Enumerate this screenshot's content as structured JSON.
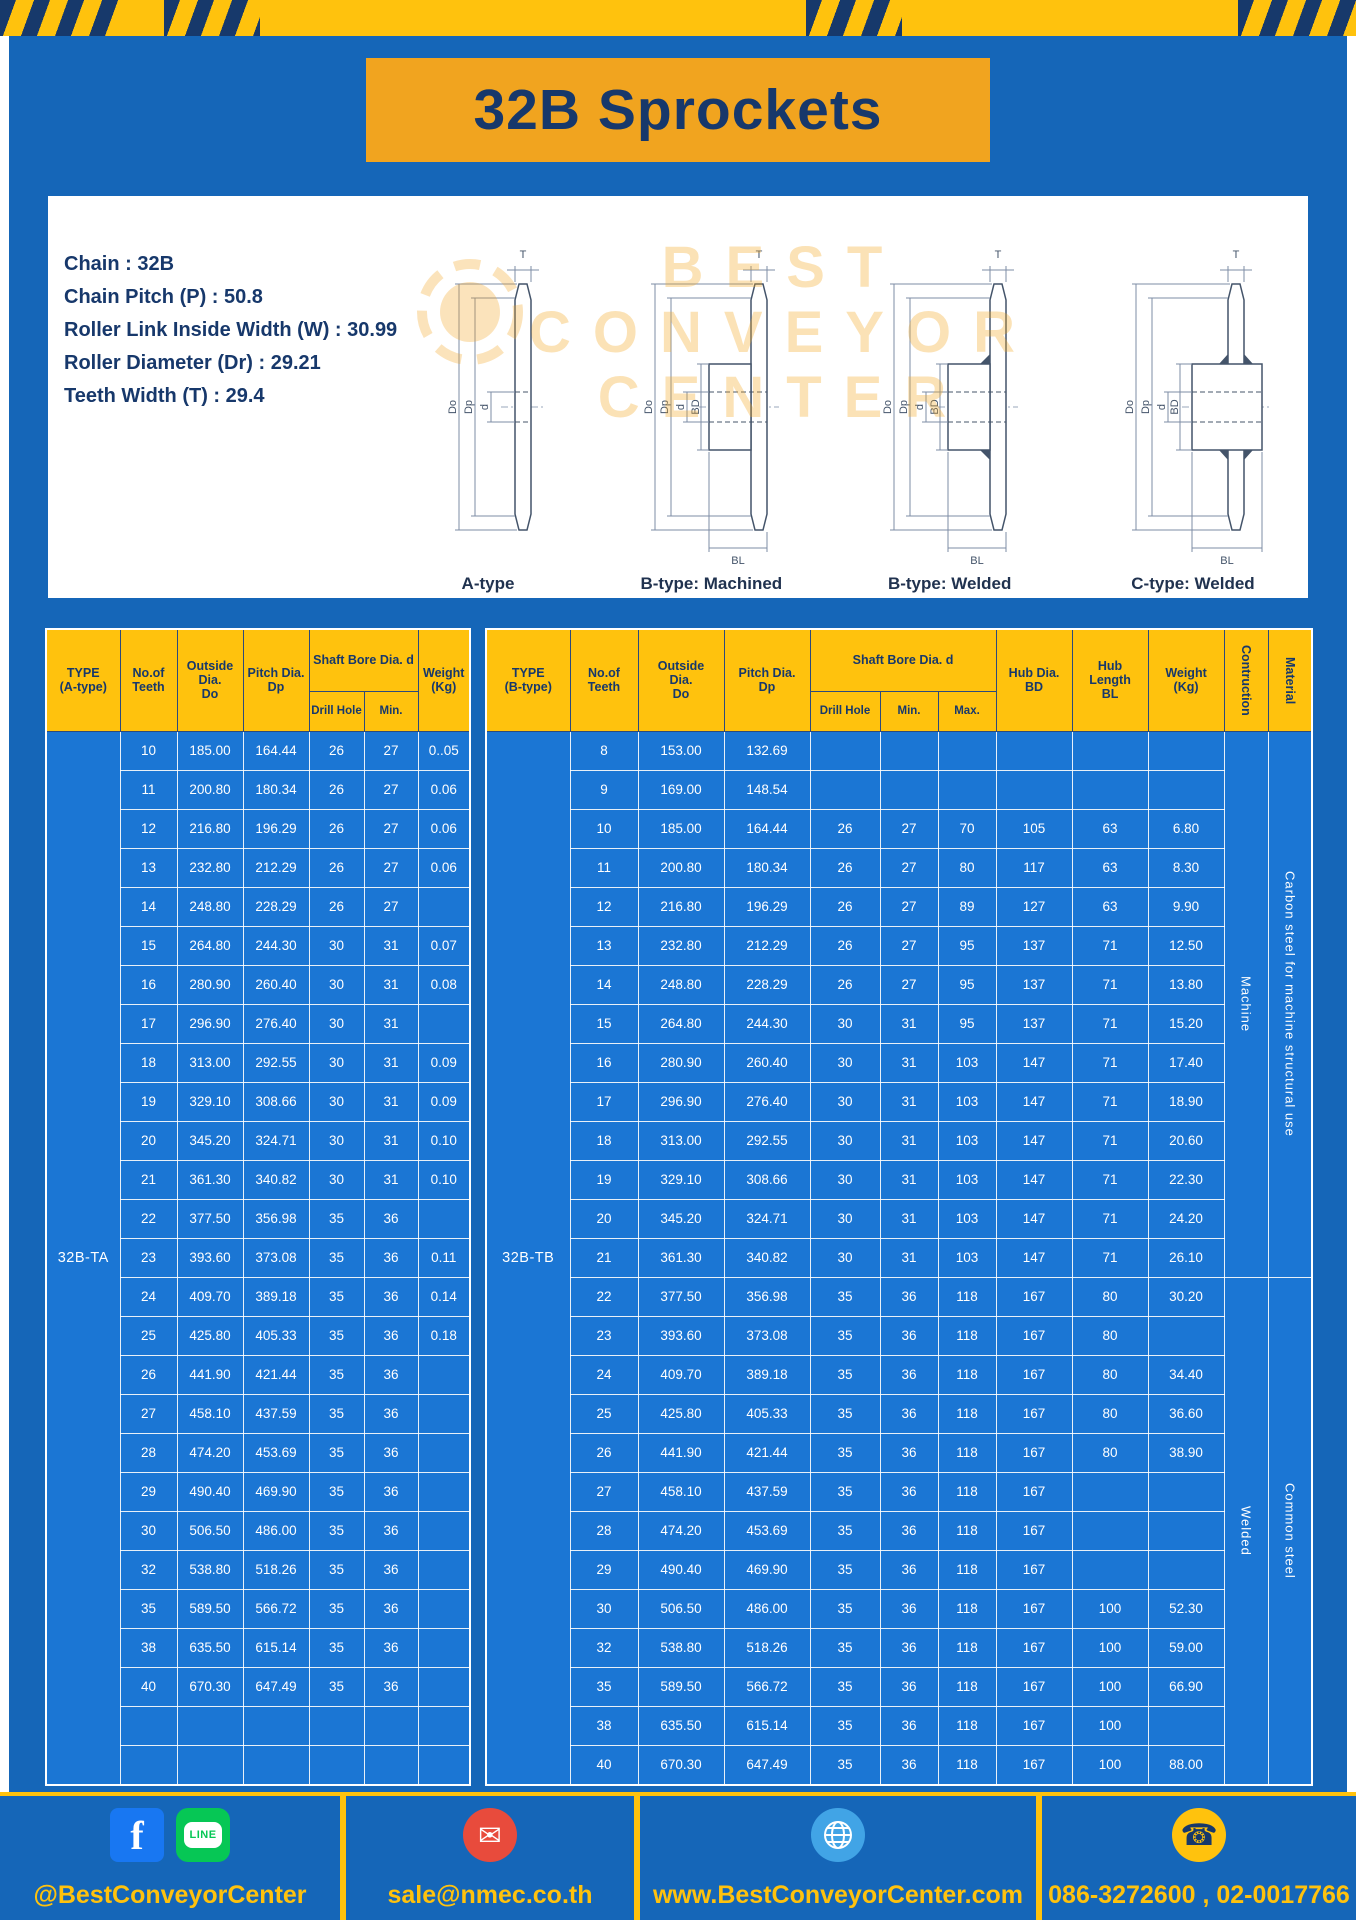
{
  "page_title": "32B Sprockets",
  "specs": {
    "lines": [
      "Chain : 32B",
      "Chain Pitch (P) : 50.8",
      "Roller Link Inside Width (W) : 30.99",
      "Roller Diameter (Dr) : 29.21",
      "Teeth Width (T) : 29.4"
    ]
  },
  "watermark": {
    "text": "BEST\nCONVEYOR\nCENTER"
  },
  "dims": {
    "T": "T",
    "Do": "Do",
    "Dp": "Dp",
    "d": "d",
    "BD": "BD",
    "BL": "BL"
  },
  "diagrams": {
    "captions": [
      "A-type",
      "B-type: Machined",
      "B-type: Welded",
      "C-type: Welded"
    ]
  },
  "left_table": {
    "type_code": "32B-TA",
    "headers": {
      "type": "TYPE\n(A-type)",
      "teeth": "No.of\nTeeth",
      "outside": "Outside\nDia.\nDo",
      "pitch": "Pitch Dia.\nDp",
      "shaft": "Shaft Bore Dia. d",
      "drill": "Drill Hole",
      "min": "Min.",
      "weight": "Weight\n(Kg)"
    },
    "rows": [
      [
        "10",
        "185.00",
        "164.44",
        "26",
        "27",
        "0..05"
      ],
      [
        "11",
        "200.80",
        "180.34",
        "26",
        "27",
        "0.06"
      ],
      [
        "12",
        "216.80",
        "196.29",
        "26",
        "27",
        "0.06"
      ],
      [
        "13",
        "232.80",
        "212.29",
        "26",
        "27",
        "0.06"
      ],
      [
        "14",
        "248.80",
        "228.29",
        "26",
        "27",
        ""
      ],
      [
        "15",
        "264.80",
        "244.30",
        "30",
        "31",
        "0.07"
      ],
      [
        "16",
        "280.90",
        "260.40",
        "30",
        "31",
        "0.08"
      ],
      [
        "17",
        "296.90",
        "276.40",
        "30",
        "31",
        ""
      ],
      [
        "18",
        "313.00",
        "292.55",
        "30",
        "31",
        "0.09"
      ],
      [
        "19",
        "329.10",
        "308.66",
        "30",
        "31",
        "0.09"
      ],
      [
        "20",
        "345.20",
        "324.71",
        "30",
        "31",
        "0.10"
      ],
      [
        "21",
        "361.30",
        "340.82",
        "30",
        "31",
        "0.10"
      ],
      [
        "22",
        "377.50",
        "356.98",
        "35",
        "36",
        ""
      ],
      [
        "23",
        "393.60",
        "373.08",
        "35",
        "36",
        "0.11"
      ],
      [
        "24",
        "409.70",
        "389.18",
        "35",
        "36",
        "0.14"
      ],
      [
        "25",
        "425.80",
        "405.33",
        "35",
        "36",
        "0.18"
      ],
      [
        "26",
        "441.90",
        "421.44",
        "35",
        "36",
        ""
      ],
      [
        "27",
        "458.10",
        "437.59",
        "35",
        "36",
        ""
      ],
      [
        "28",
        "474.20",
        "453.69",
        "35",
        "36",
        ""
      ],
      [
        "29",
        "490.40",
        "469.90",
        "35",
        "36",
        ""
      ],
      [
        "30",
        "506.50",
        "486.00",
        "35",
        "36",
        ""
      ],
      [
        "32",
        "538.80",
        "518.26",
        "35",
        "36",
        ""
      ],
      [
        "35",
        "589.50",
        "566.72",
        "35",
        "36",
        ""
      ],
      [
        "38",
        "635.50",
        "615.14",
        "35",
        "36",
        ""
      ],
      [
        "40",
        "670.30",
        "647.49",
        "35",
        "36",
        ""
      ],
      [
        "",
        "",
        "",
        "",
        "",
        ""
      ],
      [
        "",
        "",
        "",
        "",
        "",
        ""
      ]
    ]
  },
  "right_table": {
    "type_code": "32B-TB",
    "headers": {
      "type": "TYPE\n(B-type)",
      "teeth": "No.of\nTeeth",
      "outside": "Outside\nDia.\nDo",
      "pitch": "Pitch Dia.\nDp",
      "shaft": "Shaft Bore Dia. d",
      "drill": "Drill Hole",
      "min": "Min.",
      "max": "Max.",
      "hub_dia": "Hub Dia.\nBD",
      "hub_len": "Hub\nLength\nBL",
      "weight": "Weight\n(Kg)",
      "construction": "Contruction",
      "material": "Material"
    },
    "rows": [
      [
        "8",
        "153.00",
        "132.69",
        "",
        "",
        "",
        "",
        "",
        ""
      ],
      [
        "9",
        "169.00",
        "148.54",
        "",
        "",
        "",
        "",
        "",
        ""
      ],
      [
        "10",
        "185.00",
        "164.44",
        "26",
        "27",
        "70",
        "105",
        "63",
        "6.80"
      ],
      [
        "11",
        "200.80",
        "180.34",
        "26",
        "27",
        "80",
        "117",
        "63",
        "8.30"
      ],
      [
        "12",
        "216.80",
        "196.29",
        "26",
        "27",
        "89",
        "127",
        "63",
        "9.90"
      ],
      [
        "13",
        "232.80",
        "212.29",
        "26",
        "27",
        "95",
        "137",
        "71",
        "12.50"
      ],
      [
        "14",
        "248.80",
        "228.29",
        "26",
        "27",
        "95",
        "137",
        "71",
        "13.80"
      ],
      [
        "15",
        "264.80",
        "244.30",
        "30",
        "31",
        "95",
        "137",
        "71",
        "15.20"
      ],
      [
        "16",
        "280.90",
        "260.40",
        "30",
        "31",
        "103",
        "147",
        "71",
        "17.40"
      ],
      [
        "17",
        "296.90",
        "276.40",
        "30",
        "31",
        "103",
        "147",
        "71",
        "18.90"
      ],
      [
        "18",
        "313.00",
        "292.55",
        "30",
        "31",
        "103",
        "147",
        "71",
        "20.60"
      ],
      [
        "19",
        "329.10",
        "308.66",
        "30",
        "31",
        "103",
        "147",
        "71",
        "22.30"
      ],
      [
        "20",
        "345.20",
        "324.71",
        "30",
        "31",
        "103",
        "147",
        "71",
        "24.20"
      ],
      [
        "21",
        "361.30",
        "340.82",
        "30",
        "31",
        "103",
        "147",
        "71",
        "26.10"
      ],
      [
        "22",
        "377.50",
        "356.98",
        "35",
        "36",
        "118",
        "167",
        "80",
        "30.20"
      ],
      [
        "23",
        "393.60",
        "373.08",
        "35",
        "36",
        "118",
        "167",
        "80",
        ""
      ],
      [
        "24",
        "409.70",
        "389.18",
        "35",
        "36",
        "118",
        "167",
        "80",
        "34.40"
      ],
      [
        "25",
        "425.80",
        "405.33",
        "35",
        "36",
        "118",
        "167",
        "80",
        "36.60"
      ],
      [
        "26",
        "441.90",
        "421.44",
        "35",
        "36",
        "118",
        "167",
        "80",
        "38.90"
      ],
      [
        "27",
        "458.10",
        "437.59",
        "35",
        "36",
        "118",
        "167",
        "",
        ""
      ],
      [
        "28",
        "474.20",
        "453.69",
        "35",
        "36",
        "118",
        "167",
        "",
        ""
      ],
      [
        "29",
        "490.40",
        "469.90",
        "35",
        "36",
        "118",
        "167",
        "",
        ""
      ],
      [
        "30",
        "506.50",
        "486.00",
        "35",
        "36",
        "118",
        "167",
        "100",
        "52.30"
      ],
      [
        "32",
        "538.80",
        "518.26",
        "35",
        "36",
        "118",
        "167",
        "100",
        "59.00"
      ],
      [
        "35",
        "589.50",
        "566.72",
        "35",
        "36",
        "118",
        "167",
        "100",
        "66.90"
      ],
      [
        "38",
        "635.50",
        "615.14",
        "35",
        "36",
        "118",
        "167",
        "100",
        ""
      ],
      [
        "40",
        "670.30",
        "647.49",
        "35",
        "36",
        "118",
        "167",
        "100",
        "88.00"
      ]
    ],
    "construction_groups": [
      {
        "label": "Machine",
        "span": 14
      },
      {
        "label": "Welded",
        "span": 13
      }
    ],
    "material_groups": [
      {
        "label": "Carbon steel for machine structural use",
        "span": 14
      },
      {
        "label": "Common steel",
        "span": 13
      }
    ]
  },
  "footer": {
    "handle": "@BestConveyorCenter",
    "email": "sale@nmec.co.th",
    "website": "www.BestConveyorCenter.com",
    "phone": "086-3272600 , 02-0017766",
    "fb_glyph": "f",
    "line_text": "LINE",
    "mail_glyph": "✉",
    "phone_glyph": "☎"
  },
  "colors": {
    "page_blue": "#1566b8",
    "table_blue": "#1b76d4",
    "yellow": "#ffc20d",
    "banner_orange": "#f1a41f",
    "navy": "#17386b"
  }
}
